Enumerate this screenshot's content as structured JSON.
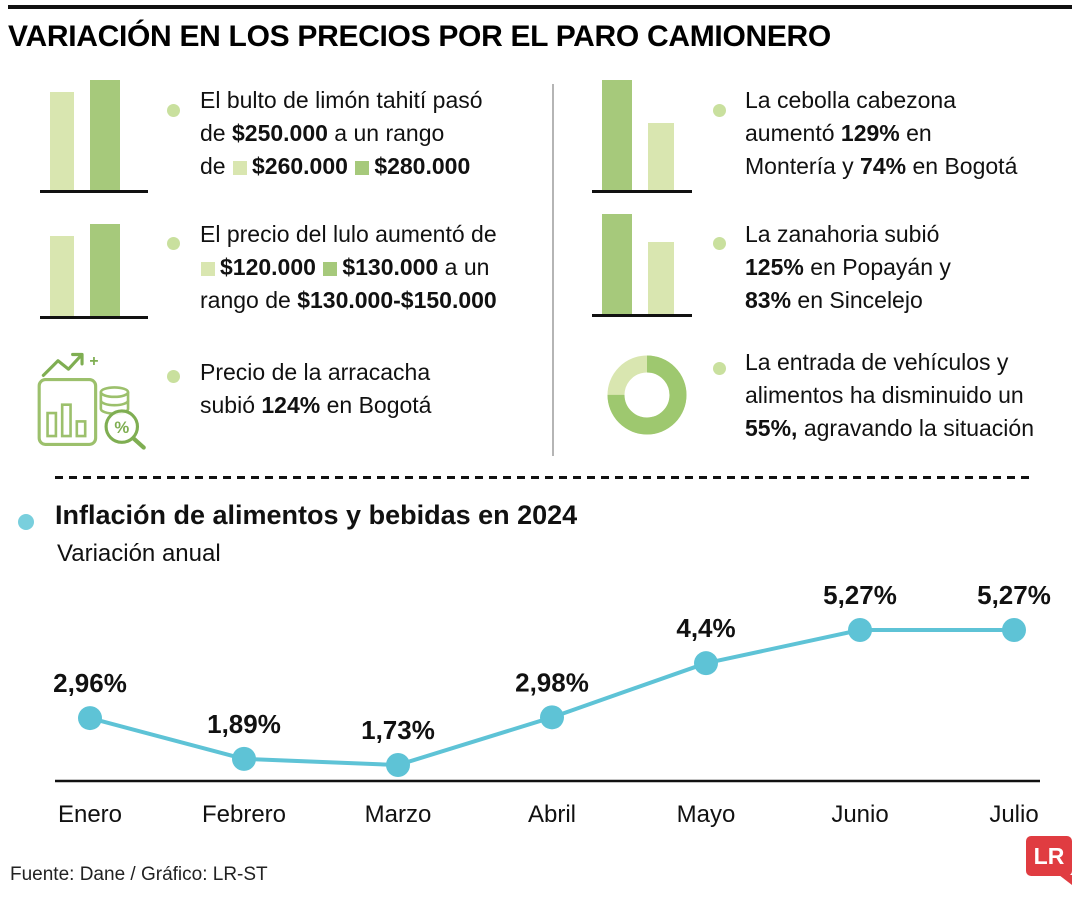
{
  "title": "VARIACIÓN EN LOS PRECIOS POR EL PARO CAMIONERO",
  "colors": {
    "light_green": "#d9e6b0",
    "dark_green": "#a6c97b",
    "bullet_green": "#c9e09e",
    "teal": "#5ec3d6",
    "teal_bullet": "#79cfdd",
    "red": "#e03c41"
  },
  "facts": {
    "left": [
      {
        "icon": "bar-chart-up-icon",
        "segments": [
          {
            "t": "El bulto de limón tahití pasó"
          },
          {
            "br": true
          },
          {
            "t": "de "
          },
          {
            "t": "$250.000",
            "b": true
          },
          {
            "t": " a un rango"
          },
          {
            "br": true
          },
          {
            "t": "de "
          },
          {
            "sq": "light"
          },
          {
            "t": "$260.000",
            "b": true
          },
          {
            "t": " "
          },
          {
            "sq": "dark"
          },
          {
            "t": "$280.000",
            "b": true
          }
        ]
      },
      {
        "icon": "bar-chart-up-icon",
        "segments": [
          {
            "t": "El precio del lulo aumentó de"
          },
          {
            "br": true
          },
          {
            "sq": "light"
          },
          {
            "t": "$120.000",
            "b": true
          },
          {
            "t": " "
          },
          {
            "sq": "dark"
          },
          {
            "t": "$130.000",
            "b": true
          },
          {
            "t": " a un"
          },
          {
            "br": true
          },
          {
            "t": "rango de "
          },
          {
            "t": "$130.000-$150.000",
            "b": true
          }
        ]
      },
      {
        "icon": "price-analysis-icon",
        "segments": [
          {
            "t": "Precio de la arracacha"
          },
          {
            "br": true
          },
          {
            "t": "subió "
          },
          {
            "t": "124%",
            "b": true
          },
          {
            "t": " en Bogotá"
          }
        ]
      }
    ],
    "right": [
      {
        "icon": "bar-chart-down-icon",
        "segments": [
          {
            "t": "La cebolla cabezona"
          },
          {
            "br": true
          },
          {
            "t": "aumentó "
          },
          {
            "t": "129%",
            "b": true
          },
          {
            "t": " en"
          },
          {
            "br": true
          },
          {
            "t": "Montería y "
          },
          {
            "t": "74%",
            "b": true
          },
          {
            "t": " en Bogotá"
          }
        ]
      },
      {
        "icon": "bar-chart-down-icon",
        "segments": [
          {
            "t": "La zanahoria subió"
          },
          {
            "br": true
          },
          {
            "t": "125%",
            "b": true
          },
          {
            "t": " en Popayán y"
          },
          {
            "br": true
          },
          {
            "t": "83%",
            "b": true
          },
          {
            "t": " en Sincelejo"
          }
        ]
      },
      {
        "icon": "donut-chart-icon",
        "segments": [
          {
            "t": "La entrada de vehículos y"
          },
          {
            "br": true
          },
          {
            "t": "alimentos ha disminuido un"
          },
          {
            "br": true
          },
          {
            "t": "55%,",
            "b": true
          },
          {
            "t": " agravando la situación"
          }
        ]
      }
    ]
  },
  "chart_data": {
    "type": "line",
    "title": "Inflación de alimentos y bebidas en 2024",
    "subtitle": "Variación anual",
    "categories": [
      "Enero",
      "Febrero",
      "Marzo",
      "Abril",
      "Mayo",
      "Junio",
      "Julio"
    ],
    "values": [
      2.96,
      1.89,
      1.73,
      2.98,
      4.4,
      5.27,
      5.27
    ],
    "labels": [
      "2,96%",
      "1,89%",
      "1,73%",
      "2,98%",
      "4,4%",
      "5,27%",
      "5,27%"
    ],
    "xlabel": "",
    "ylabel": "",
    "line_color": "#5ec3d6",
    "grid": false,
    "legend": false
  },
  "footer": {
    "source": "Fuente: Dane / Gráfico: LR-ST",
    "logo": "LR"
  }
}
